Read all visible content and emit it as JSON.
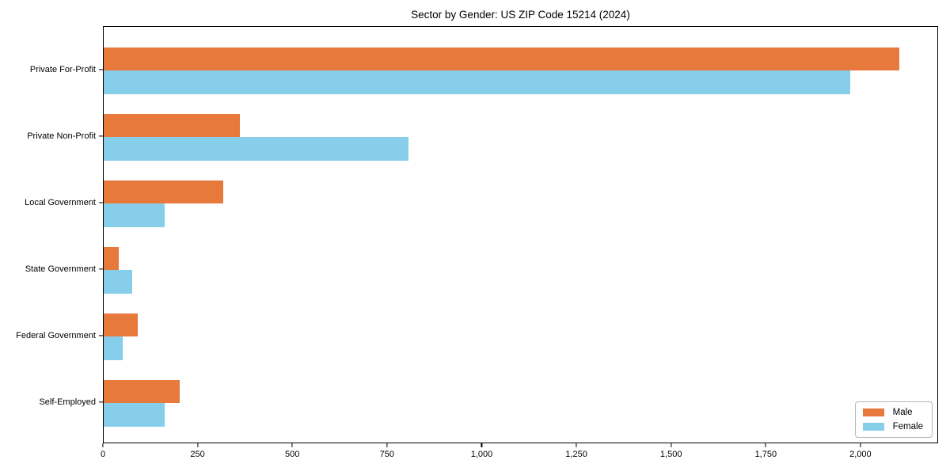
{
  "chart_data": {
    "type": "bar",
    "orientation": "horizontal",
    "title": "Sector by Gender: US ZIP Code 15214 (2024)",
    "categories": [
      "Private For-Profit",
      "Private Non-Profit",
      "Local Government",
      "State Government",
      "Federal Government",
      "Self-Employed"
    ],
    "series": [
      {
        "name": "Male",
        "color": "#E8793C",
        "values": [
          2100,
          360,
          315,
          40,
          90,
          200
        ]
      },
      {
        "name": "Female",
        "color": "#87CEEB",
        "values": [
          1970,
          805,
          160,
          75,
          50,
          160
        ]
      }
    ],
    "xlim": [
      0,
      2205
    ],
    "xticks": [
      0,
      250,
      500,
      750,
      1000,
      1250,
      1500,
      1750,
      2000
    ],
    "xtick_labels": [
      "0",
      "250",
      "500",
      "750",
      "1,000",
      "1,250",
      "1,500",
      "1,750",
      "2,000"
    ],
    "xlabel": "",
    "ylabel": "",
    "grid": false,
    "legend": {
      "position": "lower right",
      "entries": [
        "Male",
        "Female"
      ]
    }
  }
}
